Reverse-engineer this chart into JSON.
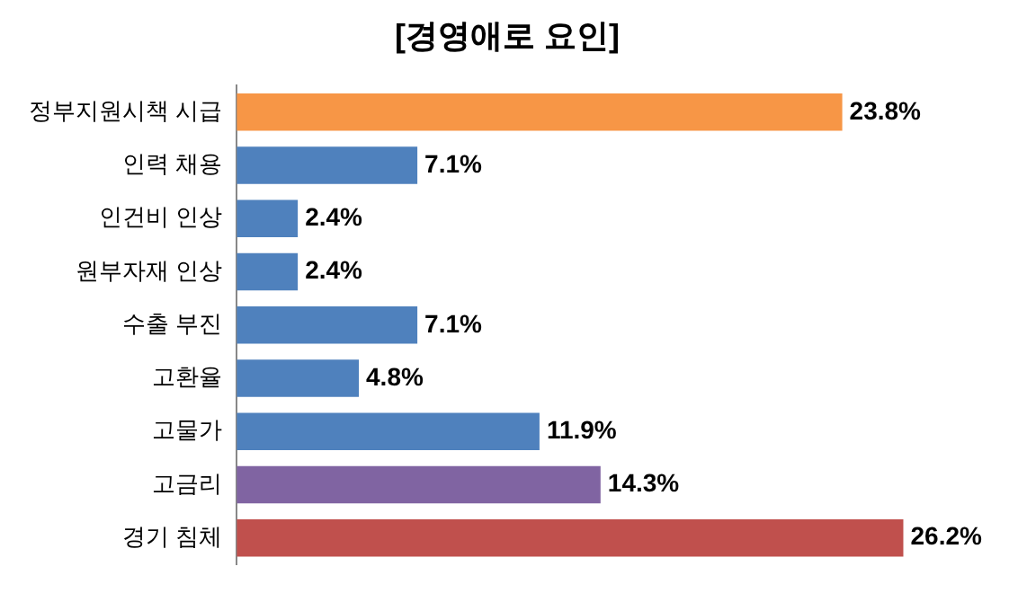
{
  "chart_data": {
    "type": "bar",
    "orientation": "horizontal",
    "title": "[경영애로 요인]",
    "categories": [
      "정부지원시책 시급",
      "인력 채용",
      "인건비 인상",
      "원부자재 인상",
      "수출 부진",
      "고환율",
      "고물가",
      "고금리",
      "경기 침체"
    ],
    "values": [
      23.8,
      7.1,
      2.4,
      2.4,
      7.1,
      4.8,
      11.9,
      14.3,
      26.2
    ],
    "colors": [
      "#f79646",
      "#4f81bd",
      "#4f81bd",
      "#4f81bd",
      "#4f81bd",
      "#4f81bd",
      "#4f81bd",
      "#8064a2",
      "#c0504d"
    ],
    "value_labels": [
      "23.8%",
      "7.1%",
      "2.4%",
      "2.4%",
      "7.1%",
      "4.8%",
      "11.9%",
      "14.3%",
      "26.2%"
    ],
    "tick_labels": "y",
    "legend": false
  }
}
